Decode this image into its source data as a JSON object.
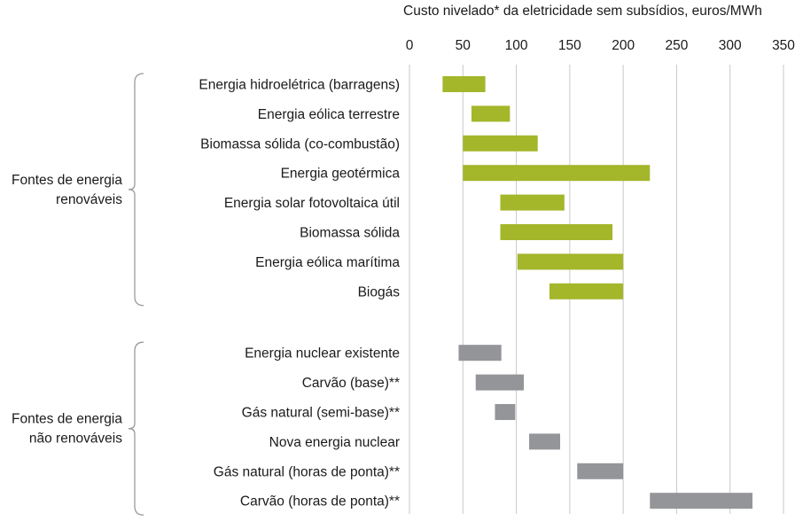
{
  "chart_data": {
    "type": "bar",
    "orientation": "horizontal-range",
    "title": "Custo nivelado* da eletricidade sem subsídios, euros/MWh",
    "xlim": [
      0,
      350
    ],
    "xticks": [
      "0",
      "50",
      "100",
      "150",
      "200",
      "250",
      "300",
      "350"
    ],
    "grid": true,
    "groups": [
      {
        "label_lines": [
          "Fontes de energia",
          "renováveis"
        ],
        "color": "#a4b62a",
        "items": [
          {
            "label": "Energia hidroelétrica (barragens)",
            "low": 31,
            "high": 71
          },
          {
            "label": "Energia eólica terrestre",
            "low": 58,
            "high": 94
          },
          {
            "label": "Biomassa sólida (co-combustão)",
            "low": 50,
            "high": 120
          },
          {
            "label": "Energia geotérmica",
            "low": 50,
            "high": 225
          },
          {
            "label": "Energia solar fotovoltaica útil",
            "low": 85,
            "high": 145
          },
          {
            "label": "Biomassa sólida",
            "low": 85,
            "high": 190
          },
          {
            "label": "Energia eólica marítima",
            "low": 101,
            "high": 200
          },
          {
            "label": "Biogás",
            "low": 131,
            "high": 200
          }
        ]
      },
      {
        "label_lines": [
          "Fontes de energia",
          "não renováveis"
        ],
        "color": "#939598",
        "items": [
          {
            "label": "Energia nuclear existente",
            "low": 46,
            "high": 86
          },
          {
            "label": "Carvão (base)**",
            "low": 62,
            "high": 107
          },
          {
            "label": "Gás natural (semi-base)**",
            "low": 80,
            "high": 99
          },
          {
            "label": "Nova energia nuclear",
            "low": 112,
            "high": 141
          },
          {
            "label": "Gás natural (horas de ponta)**",
            "low": 157,
            "high": 200
          },
          {
            "label": "Carvão (horas de ponta)**",
            "low": 225,
            "high": 321
          }
        ]
      }
    ]
  }
}
